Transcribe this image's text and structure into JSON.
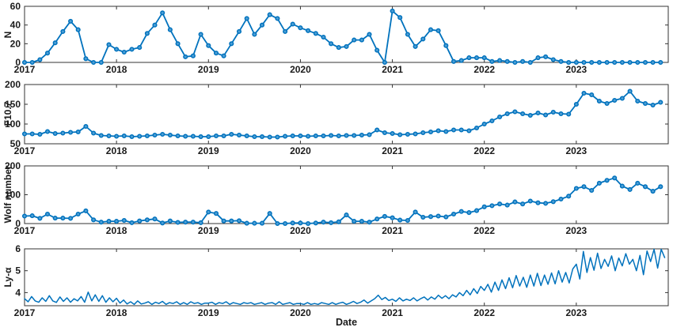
{
  "figure": {
    "xlabel": "Date",
    "x_tick_labels": [
      "2017",
      "2018",
      "2019",
      "2020",
      "2021",
      "2022",
      "2023"
    ],
    "x_range": [
      2017,
      2024
    ],
    "line_color": "#0072BD",
    "marker_face_color": "#4d9fd6",
    "axis_color": "#333333",
    "text_color": "#1a1a1a",
    "background": "#ffffff"
  },
  "chart_data": [
    {
      "id": "n",
      "type": "line",
      "ylabel": "N",
      "ylim": [
        0,
        60
      ],
      "yticks": [
        0,
        20,
        40,
        60
      ],
      "markers": true,
      "x_unit": "monthly",
      "x_start": 2017.0,
      "x_step": 0.0833333,
      "values": [
        0,
        0,
        3,
        10,
        21,
        33,
        44,
        35,
        4,
        0,
        0,
        19,
        14,
        11,
        14,
        16,
        31,
        40,
        53,
        35,
        20,
        6,
        7,
        30,
        18,
        10,
        7,
        20,
        33,
        47,
        30,
        40,
        51,
        47,
        33,
        41,
        37,
        34,
        31,
        27,
        20,
        16,
        17,
        24,
        24,
        30,
        13,
        0,
        55,
        48,
        30,
        17,
        25,
        35,
        34,
        18,
        1,
        2,
        5,
        5,
        5,
        1,
        2,
        1,
        0,
        1,
        0,
        5,
        6,
        3,
        1,
        0,
        0,
        0,
        0,
        0,
        0,
        0,
        0,
        0,
        0,
        0,
        0,
        0
      ]
    },
    {
      "id": "f107",
      "type": "line",
      "ylabel": "F10.7",
      "ylim": [
        50,
        200
      ],
      "yticks": [
        50,
        100,
        150,
        200
      ],
      "markers": true,
      "x_unit": "monthly",
      "x_start": 2017.0,
      "x_step": 0.0833333,
      "values": [
        75,
        75,
        74,
        81,
        76,
        77,
        79,
        80,
        94,
        77,
        71,
        70,
        69,
        70,
        68,
        69,
        70,
        72,
        74,
        72,
        70,
        69,
        69,
        68,
        68,
        70,
        70,
        74,
        72,
        70,
        68,
        68,
        67,
        67,
        69,
        70,
        70,
        69,
        70,
        70,
        71,
        70,
        71,
        71,
        72,
        73,
        85,
        78,
        76,
        73,
        74,
        75,
        78,
        80,
        83,
        81,
        85,
        85,
        83,
        90,
        100,
        108,
        118,
        126,
        131,
        126,
        122,
        128,
        123,
        130,
        126,
        125,
        150,
        178,
        174,
        158,
        152,
        160,
        165,
        183,
        158,
        152,
        148,
        155
      ]
    },
    {
      "id": "wolf-number",
      "type": "line",
      "ylabel": "Wolf number",
      "ylim": [
        0,
        200
      ],
      "yticks": [
        0,
        100,
        200
      ],
      "markers": true,
      "x_unit": "monthly",
      "x_start": 2017.0,
      "x_step": 0.0833333,
      "values": [
        26,
        27,
        18,
        33,
        19,
        19,
        18,
        33,
        44,
        13,
        5,
        8,
        8,
        11,
        3,
        9,
        13,
        16,
        2,
        9,
        4,
        5,
        5,
        3,
        40,
        35,
        9,
        9,
        10,
        1,
        1,
        1,
        35,
        0,
        0,
        2,
        2,
        0,
        2,
        5,
        3,
        6,
        30,
        8,
        8,
        5,
        16,
        25,
        20,
        12,
        11,
        40,
        22,
        24,
        26,
        23,
        33,
        42,
        38,
        45,
        58,
        62,
        68,
        64,
        75,
        68,
        78,
        72,
        70,
        76,
        85,
        95,
        122,
        128,
        115,
        140,
        150,
        158,
        130,
        118,
        140,
        128,
        112,
        128
      ]
    },
    {
      "id": "lyman-alpha",
      "type": "line",
      "ylabel": "Ly-α",
      "ylim": [
        3.4,
        6
      ],
      "yticks": [
        4,
        5,
        6
      ],
      "markers": false,
      "x_unit": "biweekly",
      "x_start": 2017.0,
      "x_step": 0.0384615,
      "values": [
        3.72,
        3.58,
        3.82,
        3.62,
        3.56,
        3.76,
        3.6,
        3.86,
        3.62,
        3.55,
        3.8,
        3.6,
        3.76,
        3.56,
        3.72,
        3.62,
        3.82,
        3.56,
        4.02,
        3.62,
        3.9,
        3.6,
        3.86,
        3.56,
        3.76,
        3.58,
        3.74,
        3.52,
        3.66,
        3.48,
        3.58,
        3.46,
        3.62,
        3.48,
        3.52,
        3.58,
        3.46,
        3.56,
        3.5,
        3.6,
        3.46,
        3.54,
        3.5,
        3.58,
        3.46,
        3.54,
        3.46,
        3.58,
        3.5,
        3.54,
        3.46,
        3.52,
        3.52,
        3.56,
        3.46,
        3.54,
        3.5,
        3.58,
        3.46,
        3.54,
        3.5,
        3.46,
        3.54,
        3.5,
        3.54,
        3.46,
        3.5,
        3.54,
        3.46,
        3.52,
        3.54,
        3.46,
        3.58,
        3.46,
        3.5,
        3.54,
        3.46,
        3.5,
        3.5,
        3.46,
        3.54,
        3.46,
        3.5,
        3.46,
        3.54,
        3.5,
        3.46,
        3.54,
        3.46,
        3.52,
        3.56,
        3.46,
        3.52,
        3.6,
        3.5,
        3.56,
        3.66,
        3.52,
        3.62,
        3.72,
        3.88,
        3.68,
        3.78,
        3.64,
        3.7,
        3.6,
        3.76,
        3.62,
        3.7,
        3.64,
        3.76,
        3.62,
        3.72,
        3.8,
        3.66,
        3.8,
        3.7,
        3.88,
        3.74,
        3.86,
        3.72,
        3.9,
        3.8,
        4.0,
        3.86,
        4.1,
        3.9,
        4.18,
        3.96,
        4.28,
        4.1,
        4.38,
        4.02,
        4.48,
        4.1,
        4.58,
        4.18,
        4.68,
        4.22,
        4.78,
        4.3,
        4.7,
        4.24,
        4.8,
        4.3,
        4.88,
        4.32,
        4.8,
        4.38,
        4.9,
        4.4,
        5.0,
        4.48,
        4.92,
        4.44,
        5.08,
        5.3,
        4.62,
        5.88,
        4.92,
        5.6,
        5.02,
        5.8,
        5.1,
        5.52,
        5.2,
        5.68,
        5.0,
        5.58,
        5.22,
        5.78,
        5.3,
        5.52,
        5.0,
        5.7,
        4.82,
        5.9,
        5.42,
        5.98,
        5.12,
        5.98,
        5.6
      ]
    }
  ]
}
